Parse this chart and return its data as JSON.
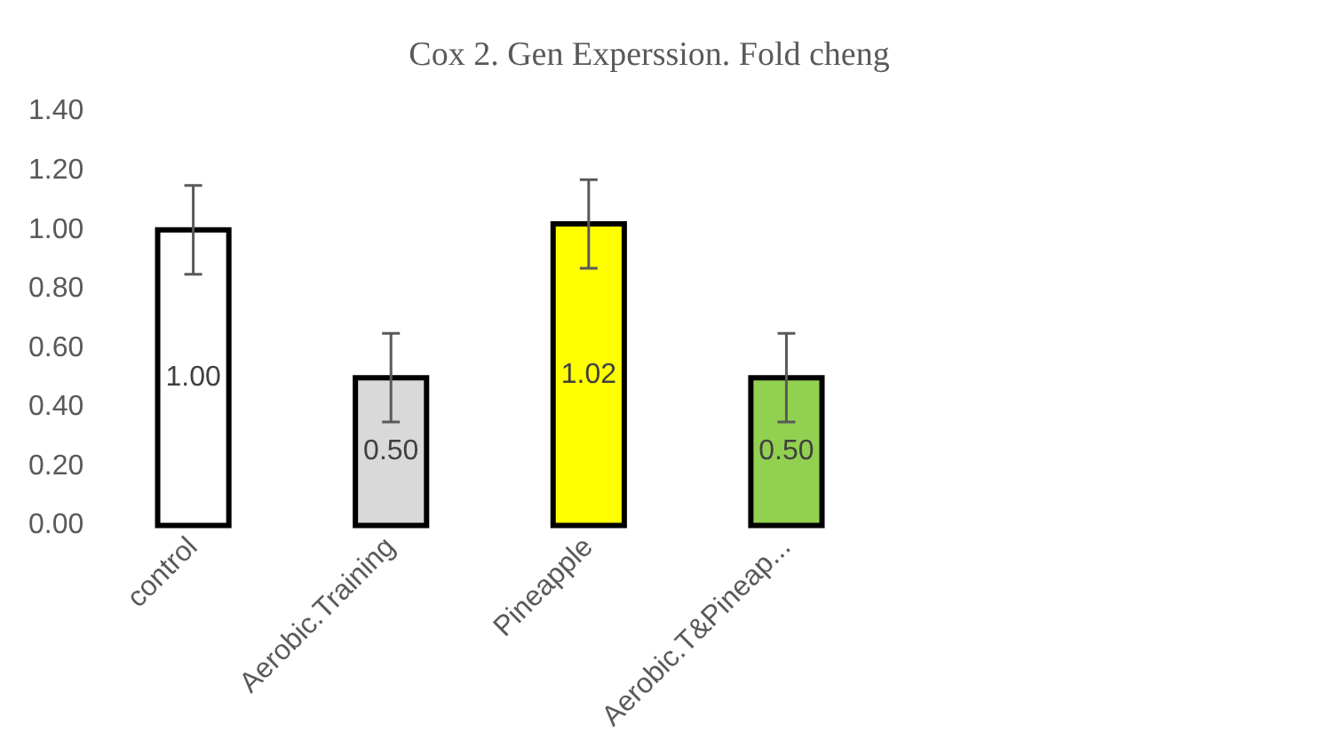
{
  "chart_data": {
    "type": "bar",
    "title": "Cox 2. Gen Experssion. Fold cheng",
    "categories": [
      "control",
      "Aerobic.Training",
      "Pineapple",
      "Aerobic.T&Pineap...",
      null,
      null
    ],
    "values": [
      1.0,
      0.5,
      1.02,
      0.5,
      null,
      null
    ],
    "colors": [
      "#ffffff",
      "#d9d9d9",
      "#ffff00",
      "#92d050",
      "#ffffff",
      "#ffffff"
    ],
    "errors": [
      0.15,
      0.15,
      0.15,
      0.15,
      null,
      null
    ],
    "value_labels": [
      "1.00",
      "0.50",
      "1.02",
      "0.50",
      null,
      null
    ],
    "ylim": [
      0,
      1.4
    ],
    "yticks": [
      {
        "value": 0,
        "label": "0.00"
      },
      {
        "value": 0.2,
        "label": "0.20"
      },
      {
        "value": 0.4,
        "label": "0.40"
      },
      {
        "value": 0.6,
        "label": "0.60"
      },
      {
        "value": 0.8,
        "label": "0.80"
      },
      {
        "value": 1,
        "label": "1.00"
      },
      {
        "value": 1.2,
        "label": "1.20"
      },
      {
        "value": 1.4,
        "label": "1.40"
      }
    ],
    "grid": false,
    "legend": false
  }
}
